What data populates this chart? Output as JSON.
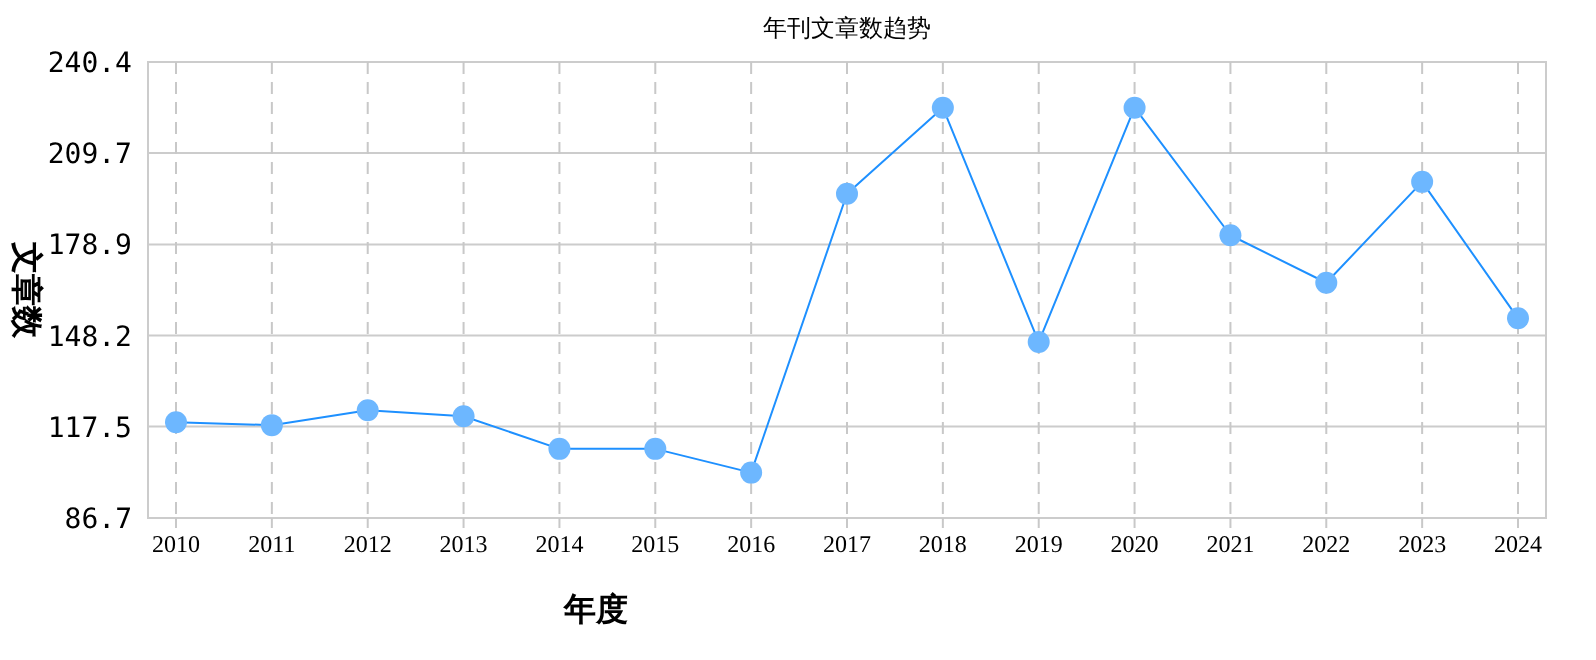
{
  "chart_data": {
    "type": "line",
    "title": "年刊文章数趋势",
    "xlabel": "年度",
    "ylabel": "文章数",
    "categories": [
      "2010",
      "2011",
      "2012",
      "2013",
      "2014",
      "2015",
      "2016",
      "2017",
      "2018",
      "2019",
      "2020",
      "2021",
      "2022",
      "2023",
      "2024"
    ],
    "series": [
      {
        "color": "#1e90ff",
        "values": [
          119,
          118,
          123,
          121,
          110,
          110,
          102,
          196,
          225,
          146,
          225,
          182,
          166,
          200,
          154
        ]
      }
    ],
    "ylim": [
      86.7,
      240.4
    ],
    "yticks": [
      86.7,
      117.5,
      148.2,
      178.9,
      209.7,
      240.4
    ],
    "grid": true,
    "marker": "circle",
    "line_style": "solid"
  }
}
